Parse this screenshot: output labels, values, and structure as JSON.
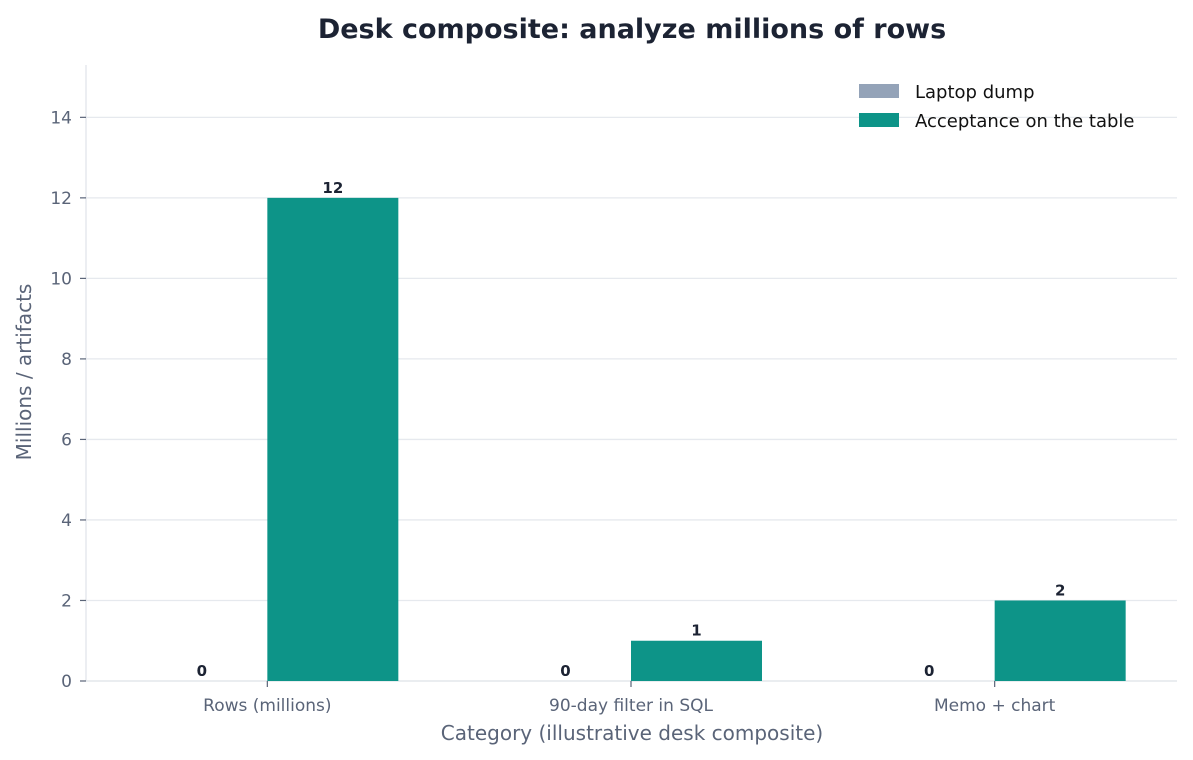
{
  "chart_data": {
    "type": "bar",
    "title": "Desk composite: analyze millions of rows",
    "xlabel": "Category (illustrative desk composite)",
    "ylabel": "Millions / artifacts",
    "categories": [
      "Rows (millions)",
      "90-day filter in SQL",
      "Memo + chart"
    ],
    "series": [
      {
        "name": "Laptop dump",
        "values": [
          0,
          0,
          0
        ],
        "color": "#94a3b8"
      },
      {
        "name": "Acceptance on the table",
        "values": [
          12,
          1,
          2
        ],
        "color": "#0d9488"
      }
    ],
    "ylim": [
      0,
      15.3
    ],
    "yticks": [
      0,
      2,
      4,
      6,
      8,
      10,
      12,
      14
    ],
    "grid": "horizontal",
    "legend_position": "top-right"
  }
}
